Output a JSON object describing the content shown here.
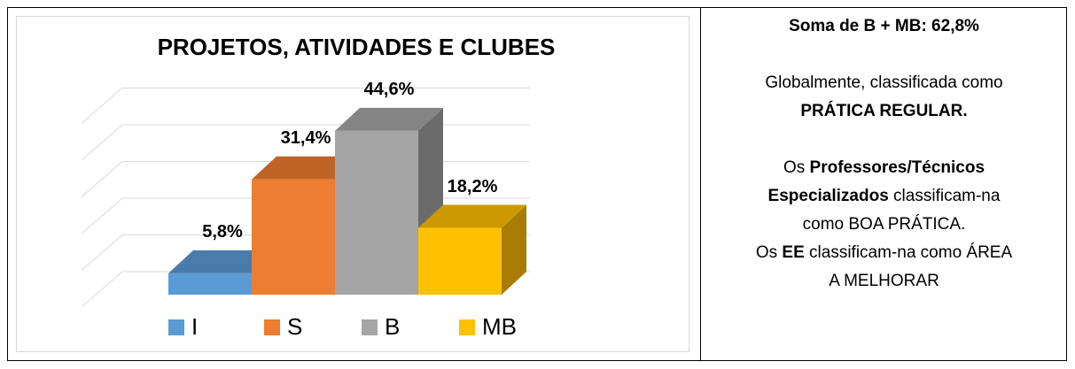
{
  "chart_data": {
    "type": "bar3d",
    "title": "PROJETOS, ATIVIDADES E CLUBES",
    "categories": [
      "I",
      "S",
      "B",
      "MB"
    ],
    "values": [
      5.8,
      31.4,
      44.6,
      18.2
    ],
    "value_labels": [
      "5,8%",
      "31,4%",
      "44,6%",
      "18,2%"
    ],
    "colors": [
      "#5b9bd5",
      "#ed7d31",
      "#a5a5a5",
      "#ffc000"
    ],
    "ylim": [
      0,
      50
    ],
    "yticks": [
      0,
      10,
      20,
      30,
      40,
      50
    ],
    "grid": true,
    "legend": "bottom"
  },
  "text_panel": {
    "paragraphs": [
      [
        [
          {
            "text": "Soma de B + MB: 62,8%",
            "bold": true
          }
        ]
      ],
      [
        [
          {
            "text": "Globalmente, classificada como",
            "bold": false
          }
        ],
        [
          {
            "text": "PRÁTICA REGULAR.",
            "bold": true
          }
        ]
      ],
      [
        [
          {
            "text": "Os ",
            "bold": false
          },
          {
            "text": "Professores/Técnicos",
            "bold": true
          }
        ],
        [
          {
            "text": "Especializados",
            "bold": true
          },
          {
            "text": " classificam-na",
            "bold": false
          }
        ],
        [
          {
            "text": "como BOA PRÁTICA.",
            "bold": false
          }
        ],
        [
          {
            "text": "Os ",
            "bold": false
          },
          {
            "text": "EE",
            "bold": true
          },
          {
            "text": " classificam-na como ÁREA",
            "bold": false
          }
        ],
        [
          {
            "text": "A MELHORAR",
            "bold": false
          }
        ]
      ]
    ]
  }
}
